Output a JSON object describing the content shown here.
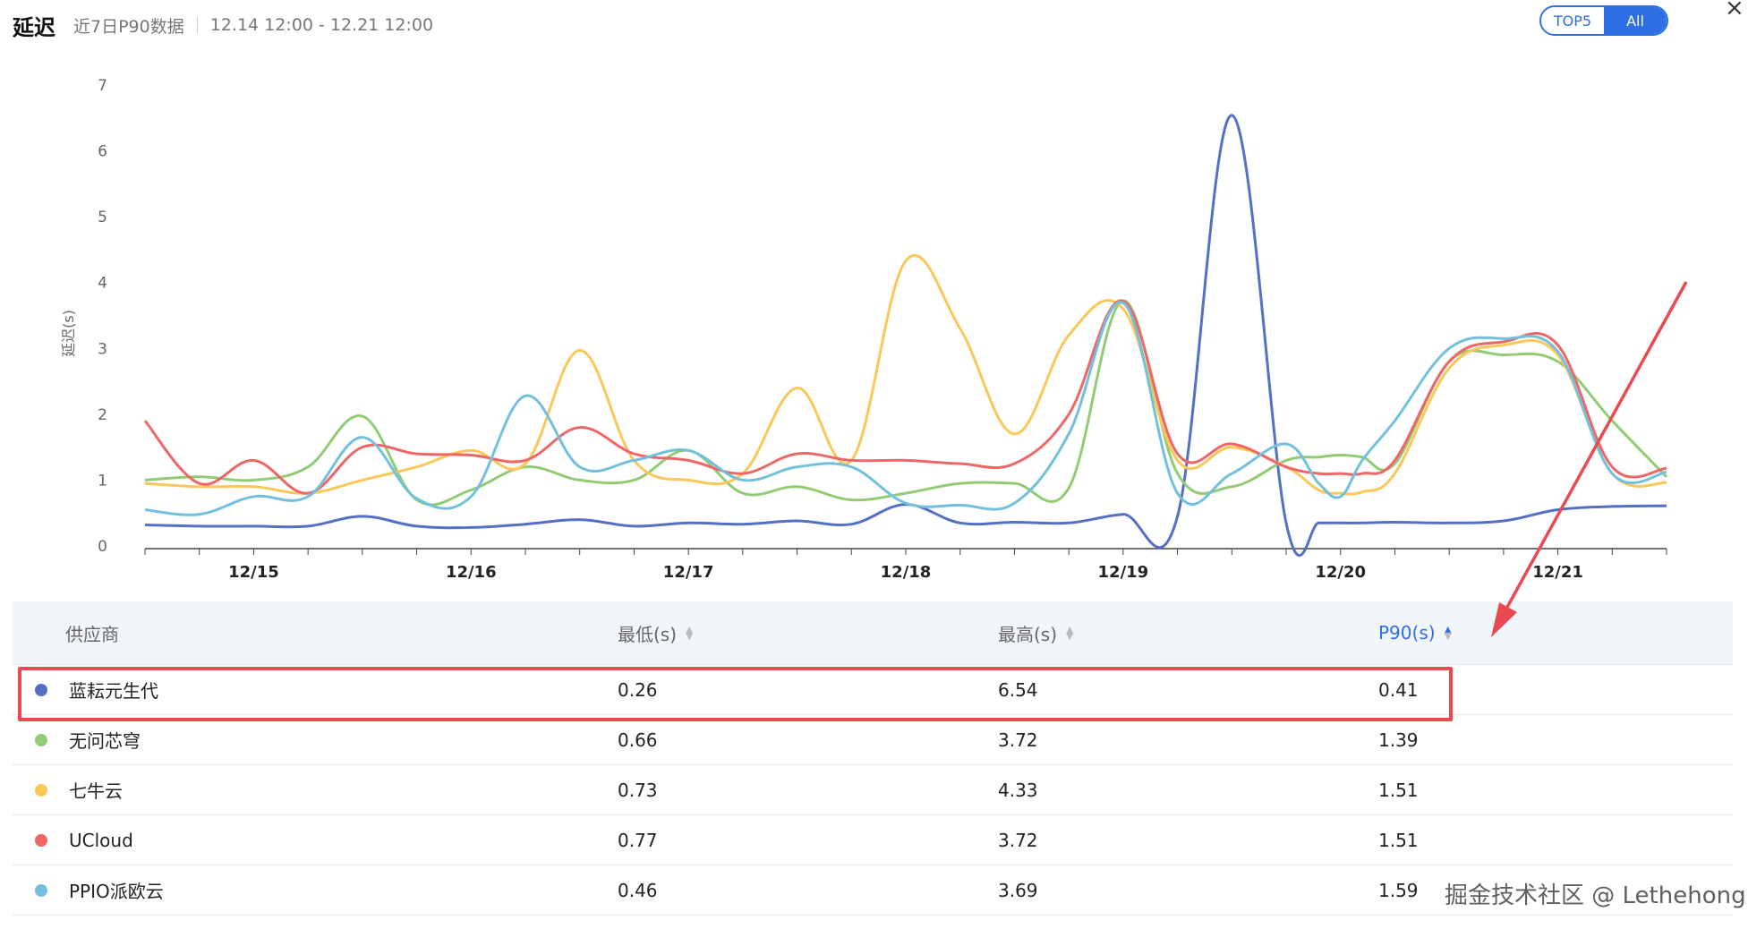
{
  "header": {
    "title": "延迟",
    "subtitle": "近7日P90数据",
    "range": "12.14 12:00 - 12.21 12:00"
  },
  "toggle": {
    "options": [
      "TOP5",
      "All"
    ],
    "selected": "All"
  },
  "close_icon": "close-icon",
  "chart_data": {
    "type": "line",
    "ylabel": "延迟(s)",
    "ylim": [
      0,
      7
    ],
    "yticks": [
      0,
      1,
      2,
      3,
      4,
      5,
      6,
      7
    ],
    "xlim": [
      0,
      7
    ],
    "xticks": [
      {
        "label": "12/15",
        "x": 0.5
      },
      {
        "label": "12/16",
        "x": 1.5
      },
      {
        "label": "12/17",
        "x": 2.5
      },
      {
        "label": "12/18",
        "x": 3.5
      },
      {
        "label": "12/19",
        "x": 4.5
      },
      {
        "label": "12/20",
        "x": 5.5
      },
      {
        "label": "12/21",
        "x": 6.5
      }
    ],
    "grid": false,
    "legend": "none",
    "series": [
      {
        "name": "蓝耘元生代",
        "color": "#5470c6",
        "x": [
          0,
          0.25,
          0.5,
          0.75,
          1.0,
          1.25,
          1.5,
          1.75,
          2.0,
          2.25,
          2.5,
          2.75,
          3.0,
          3.25,
          3.5,
          3.75,
          4.0,
          4.25,
          4.5,
          4.75,
          5.0,
          5.25,
          5.4,
          5.5,
          5.6,
          5.75,
          6.0,
          6.25,
          6.5,
          6.75,
          7.0
        ],
        "y": [
          0.32,
          0.3,
          0.3,
          0.3,
          0.45,
          0.3,
          0.28,
          0.33,
          0.4,
          0.3,
          0.35,
          0.33,
          0.38,
          0.33,
          0.63,
          0.35,
          0.36,
          0.35,
          0.48,
          0.45,
          6.54,
          0.35,
          0.35,
          0.35,
          0.35,
          0.36,
          0.35,
          0.38,
          0.55,
          0.6,
          0.61
        ]
      },
      {
        "name": "无问芯穹",
        "color": "#91cc75",
        "x": [
          0,
          0.25,
          0.5,
          0.75,
          1.0,
          1.25,
          1.5,
          1.75,
          2.0,
          2.25,
          2.5,
          2.75,
          3.0,
          3.25,
          3.5,
          3.75,
          4.0,
          4.25,
          4.5,
          4.75,
          5.0,
          5.25,
          5.4,
          5.5,
          5.6,
          5.75,
          6.0,
          6.25,
          6.5,
          6.75,
          7.0
        ],
        "y": [
          1.0,
          1.05,
          1.0,
          1.2,
          1.97,
          0.7,
          0.85,
          1.2,
          1.0,
          1.0,
          1.45,
          0.8,
          0.9,
          0.7,
          0.8,
          0.95,
          0.95,
          0.88,
          3.72,
          1.1,
          0.9,
          1.3,
          1.35,
          1.38,
          1.35,
          1.25,
          2.8,
          2.9,
          2.8,
          1.9,
          1.05
        ]
      },
      {
        "name": "七牛云",
        "color": "#fac858",
        "x": [
          0,
          0.25,
          0.5,
          0.75,
          1.0,
          1.25,
          1.5,
          1.75,
          2.0,
          2.25,
          2.5,
          2.75,
          3.0,
          3.25,
          3.5,
          3.75,
          4.0,
          4.25,
          4.5,
          4.75,
          5.0,
          5.25,
          5.4,
          5.5,
          5.6,
          5.75,
          6.0,
          6.25,
          6.5,
          6.75,
          7.0
        ],
        "y": [
          0.95,
          0.9,
          0.9,
          0.8,
          1.0,
          1.2,
          1.45,
          1.25,
          2.97,
          1.3,
          1.0,
          1.1,
          2.4,
          1.3,
          4.33,
          3.3,
          1.7,
          3.2,
          3.6,
          1.3,
          1.5,
          1.2,
          0.85,
          0.8,
          0.82,
          1.1,
          2.7,
          3.05,
          2.9,
          1.1,
          0.96
        ]
      },
      {
        "name": "UCloud",
        "color": "#ee6666",
        "x": [
          0,
          0.25,
          0.5,
          0.75,
          1.0,
          1.25,
          1.5,
          1.75,
          2.0,
          2.25,
          2.5,
          2.75,
          3.0,
          3.25,
          3.5,
          3.75,
          4.0,
          4.25,
          4.5,
          4.75,
          5.0,
          5.25,
          5.4,
          5.5,
          5.6,
          5.75,
          6.0,
          6.25,
          6.5,
          6.75,
          7.0
        ],
        "y": [
          1.9,
          0.95,
          1.3,
          0.8,
          1.5,
          1.4,
          1.38,
          1.3,
          1.8,
          1.4,
          1.3,
          1.1,
          1.4,
          1.3,
          1.3,
          1.25,
          1.25,
          2.0,
          3.72,
          1.4,
          1.55,
          1.2,
          1.1,
          1.1,
          1.1,
          1.3,
          2.8,
          3.1,
          3.05,
          1.2,
          1.18
        ]
      },
      {
        "name": "PPIO派欧云",
        "color": "#73c0de",
        "x": [
          0,
          0.25,
          0.5,
          0.75,
          1.0,
          1.25,
          1.5,
          1.75,
          2.0,
          2.25,
          2.5,
          2.75,
          3.0,
          3.25,
          3.5,
          3.75,
          4.0,
          4.25,
          4.5,
          4.75,
          5.0,
          5.25,
          5.4,
          5.5,
          5.6,
          5.75,
          6.0,
          6.25,
          6.5,
          6.75,
          7.0
        ],
        "y": [
          0.55,
          0.48,
          0.75,
          0.75,
          1.65,
          0.72,
          0.75,
          2.28,
          1.2,
          1.3,
          1.45,
          1.0,
          1.2,
          1.2,
          0.65,
          0.62,
          0.65,
          1.7,
          3.69,
          0.8,
          1.1,
          1.55,
          0.95,
          0.75,
          1.3,
          1.9,
          3.0,
          3.15,
          2.95,
          1.1,
          1.12
        ]
      }
    ]
  },
  "table": {
    "headers": {
      "vendor": "供应商",
      "min": "最低(s)",
      "max": "最高(s)",
      "p90": "P90(s)"
    },
    "rows": [
      {
        "dot_color": "#5470c6",
        "name": "蓝耘元生代",
        "min": "0.26",
        "max": "6.54",
        "p90": "0.41"
      },
      {
        "dot_color": "#91cc75",
        "name": "无问芯穹",
        "min": "0.66",
        "max": "3.72",
        "p90": "1.39"
      },
      {
        "dot_color": "#fac858",
        "name": "七牛云",
        "min": "0.73",
        "max": "4.33",
        "p90": "1.51"
      },
      {
        "dot_color": "#ee6666",
        "name": "UCloud",
        "min": "0.77",
        "max": "3.72",
        "p90": "1.51"
      },
      {
        "dot_color": "#73c0de",
        "name": "PPIO派欧云",
        "min": "0.46",
        "max": "3.69",
        "p90": "1.59"
      }
    ]
  },
  "annotation": {
    "highlight_color": "#e84a4f"
  },
  "watermark": "掘金技术社区 @ Lethehong"
}
